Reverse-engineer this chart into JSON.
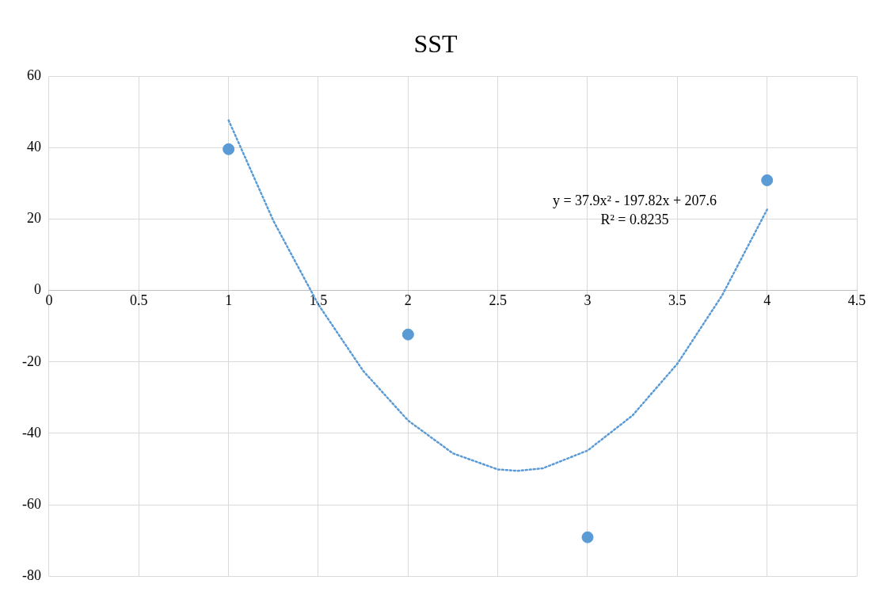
{
  "chart_data": {
    "type": "scatter",
    "title": "SST",
    "series": [
      {
        "color": "#5b9bd5",
        "marker": "circle",
        "x": [
          1,
          2,
          3,
          4
        ],
        "values": [
          39.6,
          -12.3,
          -69.1,
          30.9
        ]
      },
      {
        "type": "line",
        "color": "#5b9bd5",
        "line_style": "dotted",
        "marker": "none",
        "x": [
          1,
          1.25,
          1.5,
          1.75,
          2,
          2.25,
          2.5,
          2.61,
          2.75,
          3,
          3.25,
          3.5,
          3.75,
          4
        ],
        "values": [
          47.7,
          19.5,
          -3.9,
          -22.5,
          -36.4,
          -45.6,
          -50.1,
          -50.5,
          -49.8,
          -44.8,
          -35.0,
          -20.5,
          -1.3,
          22.7
        ]
      }
    ],
    "xlim": [
      0,
      4.5
    ],
    "xticks": [
      0,
      0.5,
      1,
      1.5,
      2,
      2.5,
      3,
      3.5,
      4,
      4.5
    ],
    "ylim": [
      -80,
      60
    ],
    "yticks": [
      -80,
      -60,
      -40,
      -20,
      0,
      20,
      40,
      60
    ],
    "grid": true,
    "legend": false,
    "annotations": [
      "y = 37.9x² - 197.82x + 207.6",
      "R² = 0.8235"
    ]
  }
}
